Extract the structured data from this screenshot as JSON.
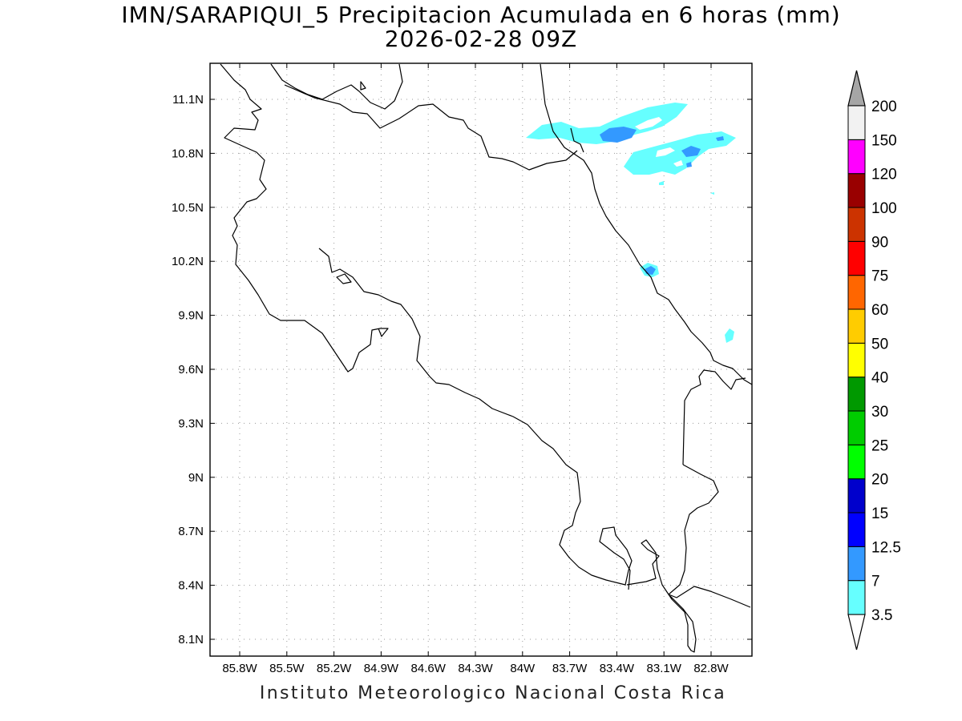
{
  "title": "IMN/SARAPIQUI_5 Precipitacion Acumulada en 6 horas (mm)",
  "subtitle": "2026-02-28 09Z",
  "footer": "Instituto Meteorologico Nacional Costa Rica",
  "axes": {
    "lon_labels": [
      "85.8W",
      "85.5W",
      "85.2W",
      "84.9W",
      "84.6W",
      "84.3W",
      "84W",
      "83.7W",
      "83.4W",
      "83.1W",
      "82.8W"
    ],
    "lat_labels": [
      "11.1N",
      "10.8N",
      "10.5N",
      "10.2N",
      "9.9N",
      "9.6N",
      "9.3N",
      "9N",
      "8.7N",
      "8.4N",
      "8.1N"
    ]
  },
  "colorbar": {
    "levels": [
      "3.5",
      "7",
      "12.5",
      "15",
      "20",
      "25",
      "30",
      "40",
      "50",
      "60",
      "75",
      "90",
      "100",
      "120",
      "150",
      "200"
    ],
    "colors": [
      "#66ffff",
      "#3399ff",
      "#0000ff",
      "#0000cc",
      "#00ff00",
      "#00cc00",
      "#009900",
      "#ffff00",
      "#ffcc00",
      "#ff6600",
      "#ff0000",
      "#cc3300",
      "#990000",
      "#ff00ff",
      "#9933cc",
      "#f2f2f2"
    ],
    "over_color": "#a6a6a6",
    "under_color": "#ffffff"
  }
}
